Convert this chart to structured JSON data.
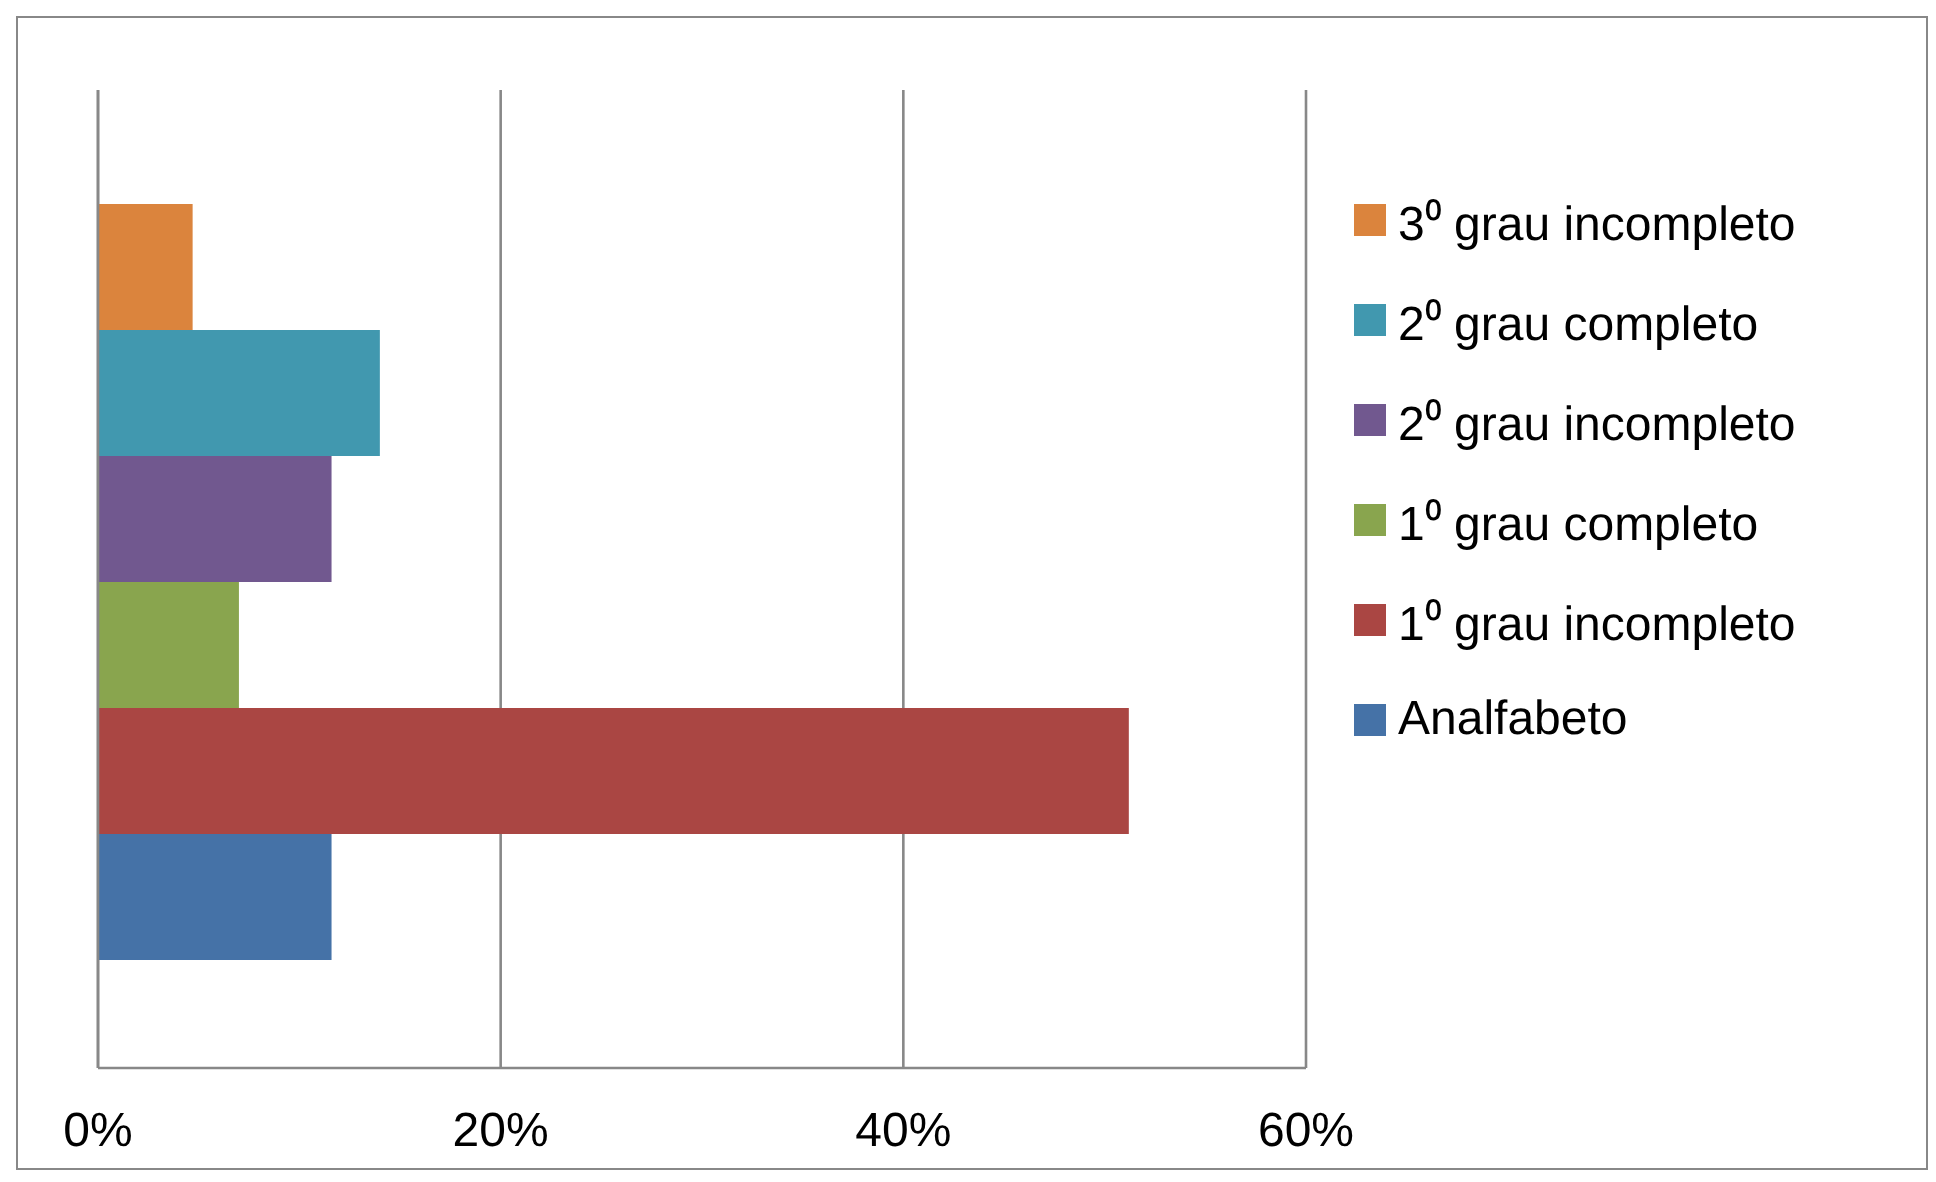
{
  "chart_data": {
    "type": "bar",
    "orientation": "horizontal",
    "categories": [
      null
    ],
    "series": [
      {
        "name": "Analfabeto",
        "color": "#4572a7",
        "values": [
          11.6
        ]
      },
      {
        "name": "1⁰ grau incompleto",
        "color": "#aa4643",
        "values": [
          51.2
        ]
      },
      {
        "name": "1⁰ grau completo",
        "color": "#89a54e",
        "values": [
          7.0
        ]
      },
      {
        "name": "2⁰ grau incompleto",
        "color": "#71588f",
        "values": [
          11.6
        ]
      },
      {
        "name": "2⁰ grau completo",
        "color": "#4198af",
        "values": [
          14.0
        ]
      },
      {
        "name": "3⁰ grau incompleto",
        "color": "#db843d",
        "values": [
          4.7
        ]
      }
    ],
    "xlim": [
      0,
      60
    ],
    "xticks": [
      {
        "value": 0,
        "label": "0%"
      },
      {
        "value": 20,
        "label": "20%"
      },
      {
        "value": 40,
        "label": "40%"
      },
      {
        "value": 60,
        "label": "60%"
      }
    ],
    "grid": "x",
    "legend": "right"
  }
}
